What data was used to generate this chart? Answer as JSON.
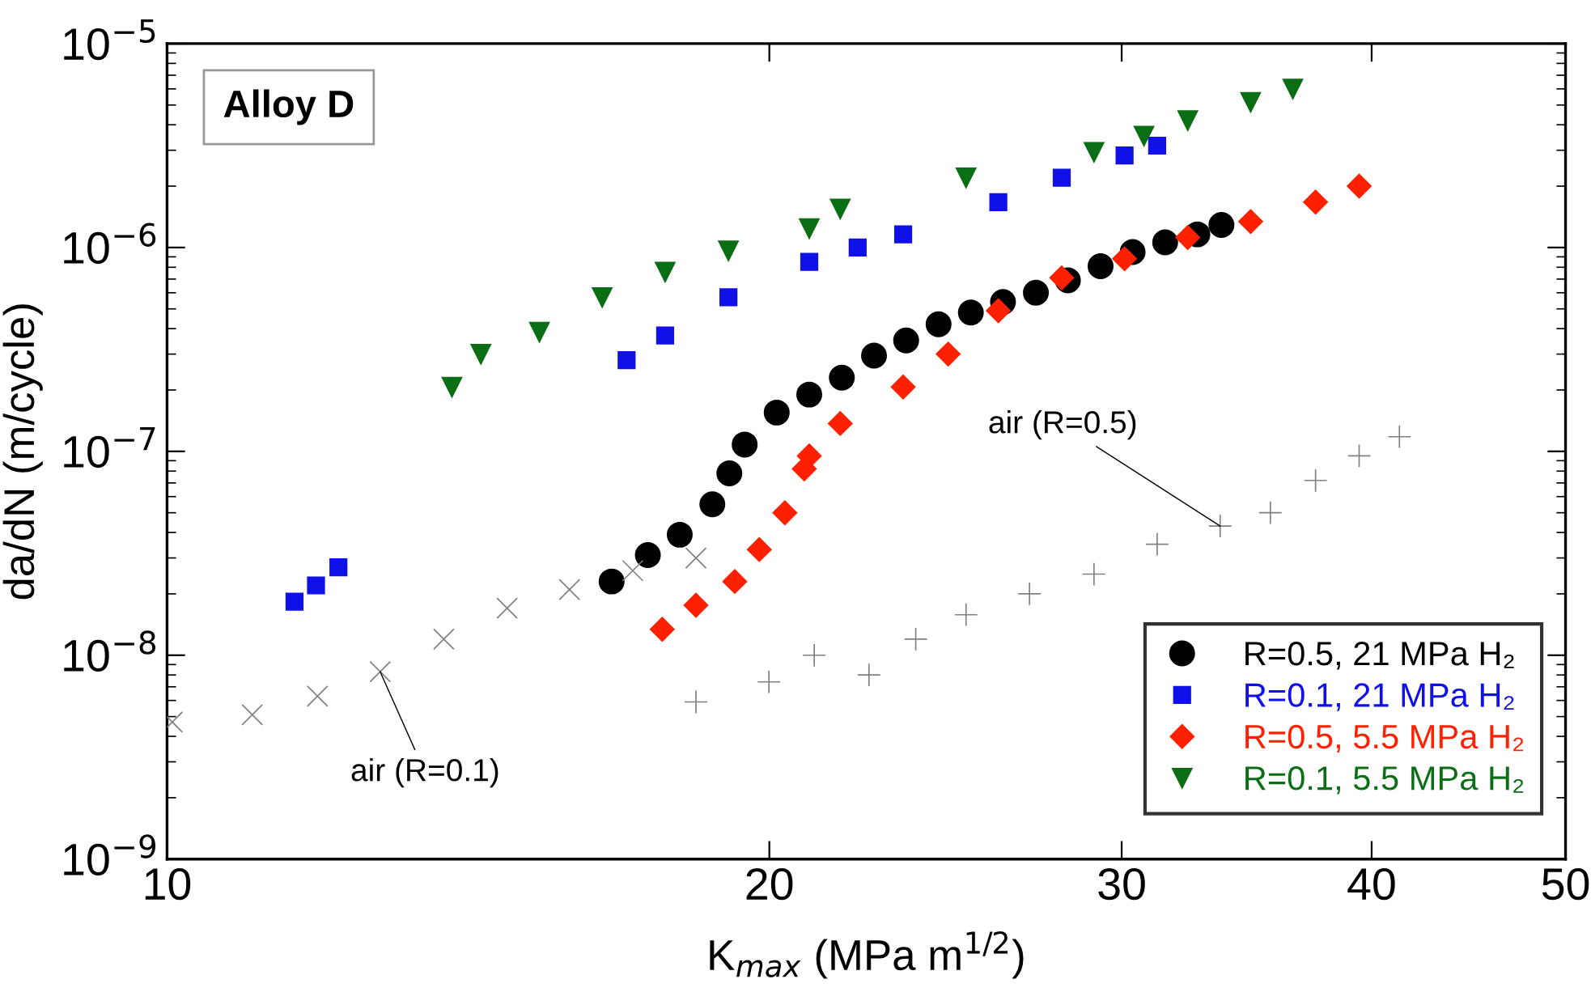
{
  "chart_data": {
    "type": "scatter",
    "xlabel": "K$_{max}$ (MPa m$^{1/2}$)",
    "ylabel": "da/dN (m/cycle)",
    "log": "xy",
    "xlim": [
      10,
      50
    ],
    "xticks": [
      10,
      20,
      30,
      40,
      50
    ],
    "ylim": [
      1e-09,
      1e-05
    ],
    "yticks": [
      {
        "value": 1e-09,
        "label": "10$^{−9}$"
      },
      {
        "value": 1e-08,
        "label": "10$^{−8}$"
      },
      {
        "value": 1e-07,
        "label": "10$^{−7}$"
      },
      {
        "value": 1e-06,
        "label": "10$^{−6}$"
      },
      {
        "value": 1e-05,
        "label": "10$^{−5}$"
      }
    ],
    "grid": false,
    "legend": "bottom right",
    "series": [
      {
        "name": "R=0.5, 21 MPa H₂",
        "color": "#000000",
        "marker": "circle",
        "x": [
          16.68,
          17.39,
          18.04,
          18.73,
          19.1,
          19.44,
          20.17,
          20.94,
          21.74,
          22.56,
          23.41,
          24.3,
          25.22,
          26.17,
          27.18,
          28.2,
          29.28,
          30.38,
          31.54,
          32.73,
          33.65
        ],
        "values": [
          2.3e-08,
          3.1e-08,
          3.9e-08,
          5.5e-08,
          7.8e-08,
          1.08e-07,
          1.55e-07,
          1.9e-07,
          2.3e-07,
          2.95e-07,
          3.5e-07,
          4.2e-07,
          4.8e-07,
          5.4e-07,
          6e-07,
          6.9e-07,
          8.1e-07,
          9.5e-07,
          1.06e-06,
          1.16e-06,
          1.29e-06
        ]
      },
      {
        "name": "R=0.1, 21 MPa H₂",
        "color": "#1010e8",
        "marker": "square",
        "x": [
          11.58,
          11.87,
          12.18,
          14.5,
          16.97,
          17.74,
          19.08,
          20.94,
          22.14,
          23.33,
          26.03,
          28.0,
          30.1,
          31.25
        ],
        "values": [
          1.83e-08,
          2.2e-08,
          2.7e-08,
          null,
          2.8e-07,
          3.7e-07,
          5.7e-07,
          8.5e-07,
          1e-06,
          1.16e-06,
          1.67e-06,
          2.2e-06,
          2.83e-06,
          3.16e-06
        ]
      },
      {
        "name": "R=0.5, 5.5 MPa H₂",
        "color": "#ff2000",
        "marker": "diamond",
        "x": [
          17.68,
          18.38,
          19.22,
          19.77,
          20.36,
          20.82,
          20.94,
          21.7,
          23.33,
          24.57,
          26.03,
          28.0,
          30.1,
          32.37,
          34.8,
          37.5,
          39.43
        ],
        "values": [
          1.34e-08,
          1.76e-08,
          2.3e-08,
          3.3e-08,
          5e-08,
          8.2e-08,
          9.5e-08,
          1.37e-07,
          2.07e-07,
          3e-07,
          4.9e-07,
          7.1e-07,
          8.8e-07,
          1.12e-06,
          1.34e-06,
          1.67e-06,
          2e-06
        ]
      },
      {
        "name": "R=0.1, 5.5 MPa H₂",
        "color": "#0a6e14",
        "marker": "triangle",
        "x": [
          13.88,
          14.35,
          15.35,
          16.5,
          17.74,
          19.08,
          20.94,
          21.7,
          25.08,
          29.06,
          30.78,
          32.37,
          34.8,
          36.53
        ],
        "values": [
          2.07e-07,
          3e-07,
          3.85e-07,
          5.7e-07,
          7.6e-07,
          9.65e-07,
          1.24e-06,
          1.55e-06,
          2.2e-06,
          2.94e-06,
          3.53e-06,
          4.2e-06,
          5.17e-06,
          6e-06
        ]
      },
      {
        "color": "#808080",
        "marker": "cross",
        "x": [
          10.06,
          11.03,
          11.89,
          12.78,
          13.75,
          14.79,
          15.89,
          17.09,
          18.38
        ],
        "values": [
          4.7e-09,
          5.1e-09,
          6.3e-09,
          8.3e-09,
          1.2e-08,
          1.7e-08,
          2.1e-08,
          2.6e-08,
          3e-08
        ]
      },
      {
        "color": "#808080",
        "marker": "plus",
        "x": [
          18.38,
          19.99,
          21.06,
          22.43,
          23.67,
          25.08,
          26.98,
          29.06,
          31.25,
          33.6,
          35.6,
          37.5,
          39.43,
          41.3
        ],
        "values": [
          5.9e-09,
          7.4e-09,
          1e-08,
          8e-09,
          1.2e-08,
          1.58e-08,
          2e-08,
          2.5e-08,
          3.5e-08,
          4.3e-08,
          5e-08,
          7.2e-08,
          9.5e-08,
          1.18e-07
        ]
      }
    ],
    "annotations": [
      "Alloy D",
      {
        "text": "air (R=0.1)",
        "x": 12.78,
        "y": 8.3e-09
      },
      {
        "text": "air (R=0.5)",
        "x": 33.6,
        "y": 4.3e-08
      }
    ]
  }
}
